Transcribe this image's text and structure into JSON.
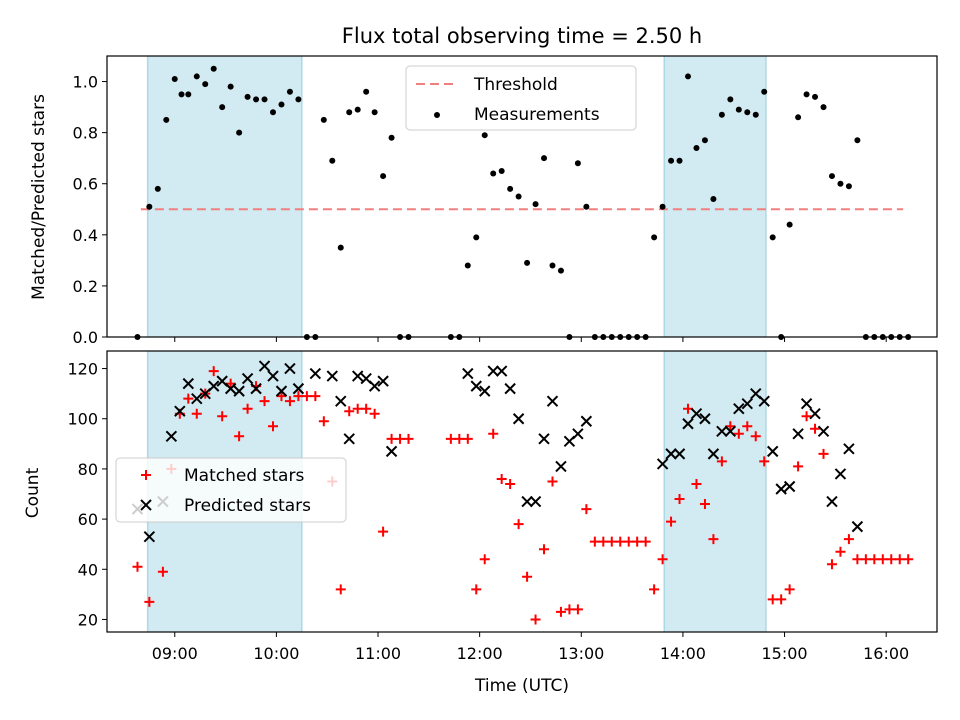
{
  "title": "Flux total observing time = 2.50 h",
  "colors": {
    "band": "#add8e6",
    "threshold": "#f08080",
    "matched": "#ff0000",
    "predicted": "#000000",
    "points": "#000000"
  },
  "chart_data": [
    {
      "type": "scatter",
      "ylabel": "Matched/Predicted stars",
      "xlabel": "",
      "ylim": [
        0,
        1.1
      ],
      "yticks": [
        0.0,
        0.2,
        0.4,
        0.6,
        0.8,
        1.0
      ],
      "ytick_labels": [
        "0.0",
        "0.2",
        "0.4",
        "0.6",
        "0.8",
        "1.0"
      ],
      "shaded_ranges": [
        [
          "08:44",
          "10:15"
        ],
        [
          "13:49",
          "14:49"
        ]
      ],
      "legend": {
        "position": "top-center",
        "entries": [
          "Threshold",
          "Measurements"
        ]
      },
      "threshold": {
        "name": "Threshold",
        "value": 0.5,
        "x_range": [
          "08:40",
          "16:10"
        ]
      },
      "series": [
        {
          "name": "Measurements",
          "x": [
            "08:38",
            "08:45",
            "08:50",
            "08:55",
            "09:00",
            "09:04",
            "09:08",
            "09:13",
            "09:18",
            "09:23",
            "09:28",
            "09:33",
            "09:38",
            "09:43",
            "09:48",
            "09:53",
            "09:58",
            "10:03",
            "10:08",
            "10:13",
            "10:18",
            "10:23",
            "10:28",
            "10:33",
            "10:38",
            "10:43",
            "10:48",
            "10:53",
            "10:58",
            "11:03",
            "11:08",
            "11:13",
            "11:18",
            "11:43",
            "11:48",
            "11:53",
            "11:58",
            "12:03",
            "12:08",
            "12:13",
            "12:18",
            "12:23",
            "12:28",
            "12:33",
            "12:38",
            "12:43",
            "12:48",
            "12:53",
            "12:58",
            "13:03",
            "13:08",
            "13:13",
            "13:18",
            "13:23",
            "13:28",
            "13:33",
            "13:38",
            "13:43",
            "13:48",
            "13:53",
            "13:58",
            "14:03",
            "14:08",
            "14:13",
            "14:18",
            "14:23",
            "14:28",
            "14:33",
            "14:38",
            "14:43",
            "14:48",
            "14:53",
            "14:58",
            "15:03",
            "15:08",
            "15:13",
            "15:18",
            "15:23",
            "15:28",
            "15:33",
            "15:38",
            "15:43",
            "15:48",
            "15:53",
            "15:58",
            "16:03",
            "16:08",
            "16:13"
          ],
          "y": [
            0.0,
            0.51,
            0.58,
            0.85,
            1.01,
            0.95,
            0.95,
            1.02,
            0.99,
            1.05,
            0.9,
            0.98,
            0.8,
            0.94,
            0.93,
            0.93,
            0.88,
            0.91,
            0.96,
            0.93,
            0.0,
            0.0,
            0.85,
            0.69,
            0.35,
            0.88,
            0.89,
            0.96,
            0.88,
            0.63,
            0.78,
            0.0,
            0.0,
            0.0,
            0.0,
            0.28,
            0.39,
            0.79,
            0.64,
            0.65,
            0.58,
            0.55,
            0.29,
            0.52,
            0.7,
            0.28,
            0.26,
            0.0,
            0.68,
            0.51,
            0.0,
            0.0,
            0.0,
            0.0,
            0.0,
            0.0,
            0.0,
            0.39,
            0.51,
            0.69,
            0.69,
            1.02,
            0.74,
            0.77,
            0.54,
            0.87,
            0.93,
            0.89,
            0.88,
            0.87,
            0.96,
            0.39,
            0.0,
            0.44,
            0.86,
            0.95,
            0.94,
            0.9,
            0.63,
            0.6,
            0.59,
            0.77,
            0.0,
            0.0,
            0.0,
            0.0,
            0.0,
            0.0
          ]
        }
      ]
    },
    {
      "type": "scatter",
      "ylabel": "Count",
      "xlabel": "Time (UTC)",
      "xlim": [
        "08:20",
        "16:30"
      ],
      "xtick_labels": [
        "09:00",
        "10:00",
        "11:00",
        "12:00",
        "13:00",
        "14:00",
        "15:00",
        "16:00"
      ],
      "ylim": [
        15,
        127
      ],
      "yticks": [
        20,
        40,
        60,
        80,
        100,
        120
      ],
      "ytick_labels": [
        "20",
        "40",
        "60",
        "80",
        "100",
        "120"
      ],
      "shaded_ranges": [
        [
          "08:44",
          "10:15"
        ],
        [
          "13:49",
          "14:49"
        ]
      ],
      "legend": {
        "position": "center-left",
        "entries": [
          "Matched stars",
          "Predicted stars"
        ]
      },
      "series": [
        {
          "name": "Matched stars",
          "marker": "+",
          "x": [
            "08:38",
            "08:45",
            "08:53",
            "08:58",
            "09:03",
            "09:08",
            "09:13",
            "09:18",
            "09:23",
            "09:28",
            "09:33",
            "09:38",
            "09:43",
            "09:48",
            "09:53",
            "09:58",
            "10:03",
            "10:08",
            "10:13",
            "10:18",
            "10:23",
            "10:28",
            "10:33",
            "10:38",
            "10:43",
            "10:48",
            "10:53",
            "10:58",
            "11:03",
            "11:08",
            "11:13",
            "11:18",
            "11:43",
            "11:48",
            "11:53",
            "11:58",
            "12:03",
            "12:08",
            "12:13",
            "12:18",
            "12:23",
            "12:28",
            "12:33",
            "12:38",
            "12:43",
            "12:48",
            "12:53",
            "12:58",
            "13:03",
            "13:08",
            "13:13",
            "13:18",
            "13:23",
            "13:28",
            "13:33",
            "13:38",
            "13:43",
            "13:48",
            "13:53",
            "13:58",
            "14:03",
            "14:08",
            "14:13",
            "14:18",
            "14:23",
            "14:28",
            "14:33",
            "14:38",
            "14:43",
            "14:48",
            "14:53",
            "14:58",
            "15:03",
            "15:08",
            "15:13",
            "15:18",
            "15:23",
            "15:28",
            "15:33",
            "15:38",
            "15:43",
            "15:48",
            "15:53",
            "15:58",
            "16:03",
            "16:08",
            "16:13"
          ],
          "y": [
            41,
            27,
            39,
            80,
            102,
            108,
            102,
            110,
            119,
            101,
            114,
            93,
            104,
            113,
            107,
            97,
            109,
            107,
            109,
            109,
            109,
            99,
            75,
            32,
            103,
            104,
            104,
            102,
            55,
            92,
            92,
            92,
            92,
            92,
            92,
            32,
            44,
            94,
            76,
            74,
            58,
            37,
            20,
            48,
            75,
            23,
            24,
            24,
            64,
            51,
            51,
            51,
            51,
            51,
            51,
            51,
            32,
            44,
            59,
            68,
            104,
            74,
            66,
            52,
            83,
            97,
            94,
            97,
            93,
            83,
            28,
            28,
            32,
            81,
            101,
            96,
            86,
            42,
            47,
            52,
            44,
            44,
            44,
            44,
            44,
            44,
            44
          ]
        },
        {
          "name": "Predicted stars",
          "marker": "x",
          "x": [
            "08:38",
            "08:45",
            "08:53",
            "08:58",
            "09:03",
            "09:08",
            "09:13",
            "09:18",
            "09:23",
            "09:28",
            "09:33",
            "09:38",
            "09:43",
            "09:48",
            "09:53",
            "09:58",
            "10:03",
            "10:08",
            "10:13",
            "10:23",
            "10:33",
            "10:38",
            "10:43",
            "10:48",
            "10:53",
            "10:58",
            "11:03",
            "11:08",
            "11:53",
            "11:58",
            "12:03",
            "12:08",
            "12:13",
            "12:18",
            "12:23",
            "12:28",
            "12:33",
            "12:38",
            "12:43",
            "12:48",
            "12:53",
            "12:58",
            "13:03",
            "13:48",
            "13:53",
            "13:58",
            "14:03",
            "14:08",
            "14:13",
            "14:18",
            "14:23",
            "14:28",
            "14:33",
            "14:38",
            "14:43",
            "14:48",
            "14:53",
            "14:58",
            "15:03",
            "15:08",
            "15:13",
            "15:18",
            "15:23",
            "15:28",
            "15:33",
            "15:38",
            "15:43"
          ],
          "y": [
            64,
            53,
            67,
            93,
            103,
            114,
            108,
            110,
            113,
            115,
            112,
            111,
            116,
            112,
            121,
            117,
            111,
            120,
            112,
            118,
            117,
            107,
            92,
            117,
            116,
            113,
            115,
            87,
            118,
            113,
            111,
            119,
            119,
            112,
            100,
            67,
            67,
            92,
            107,
            81,
            91,
            94,
            99,
            82,
            86,
            86,
            98,
            102,
            100,
            86,
            95,
            95,
            104,
            106,
            110,
            107,
            87,
            72,
            73,
            94,
            106,
            102,
            95,
            67,
            78,
            88,
            57
          ]
        }
      ]
    }
  ]
}
